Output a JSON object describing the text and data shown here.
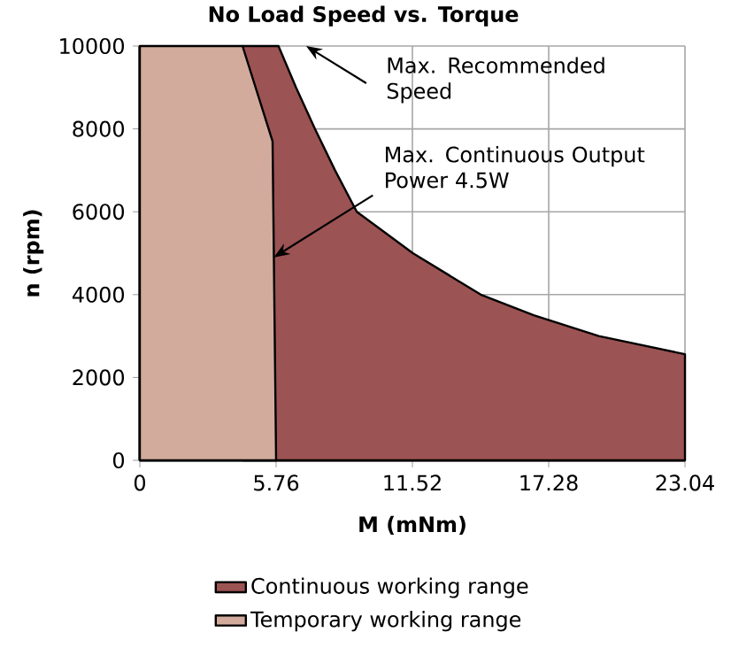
{
  "chart_data": {
    "type": "area",
    "title": "No Load Speed vs. Torque",
    "xlabel": "M (mNm)",
    "ylabel": "n (rpm)",
    "xlim": [
      0,
      23.04
    ],
    "ylim": [
      0,
      10000
    ],
    "xticks": [
      0,
      5.76,
      11.52,
      17.28,
      23.04
    ],
    "yticks": [
      0,
      2000,
      4000,
      6000,
      8000,
      10000
    ],
    "grid": true,
    "legend": "bottom",
    "series": [
      {
        "name": "Continuous working range",
        "color": "#9c5353",
        "x": [
          4.34,
          5.86,
          6.6,
          7.4,
          8.25,
          9.17,
          11.54,
          14.41,
          16.65,
          19.4,
          23.04
        ],
        "values": [
          10000,
          10000,
          9000,
          8000,
          7000,
          6000,
          5000,
          4000,
          3500,
          3000,
          2560
        ]
      },
      {
        "name": "Temporary working range",
        "color": "#d2ab9d",
        "x": [
          0,
          4.34,
          5.61,
          5.76
        ],
        "values": [
          10000,
          10000,
          7700,
          0
        ]
      }
    ],
    "annotations": [
      "Max. Recommended Speed",
      {
        "text": "Max. Continuous Output Power 4.5W",
        "x": 5.66,
        "y": 4900
      }
    ]
  }
}
